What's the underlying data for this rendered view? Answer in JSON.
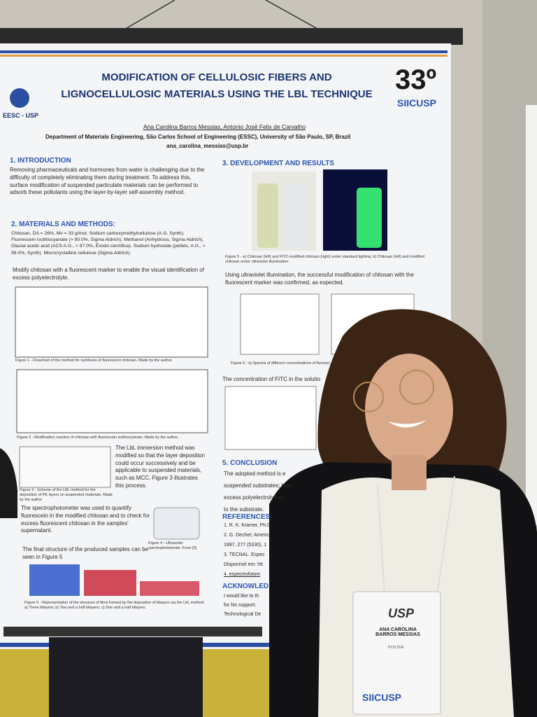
{
  "poster": {
    "logo_left": "EESC - USP",
    "title": [
      "MODIFICATION OF CELLULOSIC FIBERS AND",
      "LIGNOCELLULOSIC MATERIALS USING THE LBL TECHNIQUE"
    ],
    "edition": "33º",
    "event": "SIICUSP",
    "authors": "Ana Carolina Barros Messias, Antonio José Felix de Carvalho",
    "affiliation": "Department of Materials Engineering, São Carlos School of Engineering (ESSC), University of São Paulo, SP, Brazil",
    "email": "ana_carolina_messias@usp.br",
    "introduction": {
      "heading": "1. INTRODUCTION",
      "text": "Removing pharmaceuticals and hormones from water is challenging due to the difficulty of completely eliminating them during treatment. To address this, surface modification of suspended particulate materials can be performed to adsorb these pollutants using the layer-by-layer self-assembly method."
    },
    "materials": {
      "heading": "2. MATERIALS AND METHODS:",
      "text": "Chitosan, DA = 26%, Mv = 33 g/mol. Sodium carboxymethylcellulose (A.G. Synth). Fluorescein isothiocyanate (> 90.0%, Sigma Aldrich). Methanol (Anhydrous, Sigma Aldrich). Glacial acetic acid (ACS A.G., > 97.0%, Êxodo científica). Sodium hydroxide (pellets, A.G., > 99.0%, Synth). Microcrystalline cellulose (Sigma Aldrich).",
      "marker_text": "Modify chitosan with a fluorescent marker to enable the visual identification of excess polyelectrolyte.",
      "figure1_caption": "Figure 1 - Flowchart of the method for synthesis of fluorescent chitosan. Made by the author.",
      "figure2_caption": "Figure 2 - Modification reaction of chitosan with fluorescein isothiocyanate. Made by the author.",
      "lbl_text": "The LbL immersion method was modified so that the layer deposition could occur successively and be applicable to suspended materials, such as MCC. Figure 3 illustrates this process.",
      "figure3_caption": "Figure 3 - Scheme of the LBL method for the deposition of PE layers on suspended materials. Made by the author",
      "spectro_text": "The spectrophotometer was used to quantify fluorescein in the modified chitosan and to check for excess fluorescent chitosan in the samples' supernatant.",
      "figure4_caption": "Figure 4 - Ultraviolet spectrophotometer. From [3]",
      "final_text": "The final structure of the produced samples can be seen in Figure 5",
      "figure5_caption": "Figure 5 - Representation of the structure of films formed by the deposition of bilayers via the LbL method: a) Three bilayers; b) Two and a half bilayers; c) One and a half bilayers."
    },
    "results": {
      "heading": "3. DEVELOPMENT AND RESULTS",
      "photo_caption": "Figure 5 - a) Chitosan (left) and FITC-modified chitosan (right) under standard lighting. b) Chitosan (left) and modified chitosan under ultraviolet illumination.",
      "uv_text": "Using ultraviolet illumination, the successful modification of chitosan with the fluorescent marker was confirmed, as expected.",
      "figure6_caption": "Figure 6 - a) Spectra of different concentrations of fluoresc",
      "concentration_text": "The concentration of FITC in the solutio"
    },
    "conclusion": {
      "heading": "5. CONCLUSION",
      "lines": [
        "The adopted method is e",
        "suspended substrates; how",
        "excess polyelectrolytes i",
        "to the substrate."
      ]
    },
    "references": {
      "heading": "REFERENCES",
      "lines": [
        "1. R. K. Kramer, Ph.D.",
        "2. G. Decher; Americ",
        "1997, 277 (5330), 1",
        "3. TECNAL. Espec",
        "Disponível em: htt",
        "4_espectrofotom"
      ]
    },
    "acknowledgements": {
      "heading": "ACKNOWLED",
      "lines": [
        "I would like to th",
        "for his support.",
        "Technological De"
      ]
    }
  },
  "badge": {
    "logo": "USP",
    "name": "ANA CAROLINA BARROS MESSIAS",
    "role": "POSTER",
    "event": "SIICUSP"
  }
}
